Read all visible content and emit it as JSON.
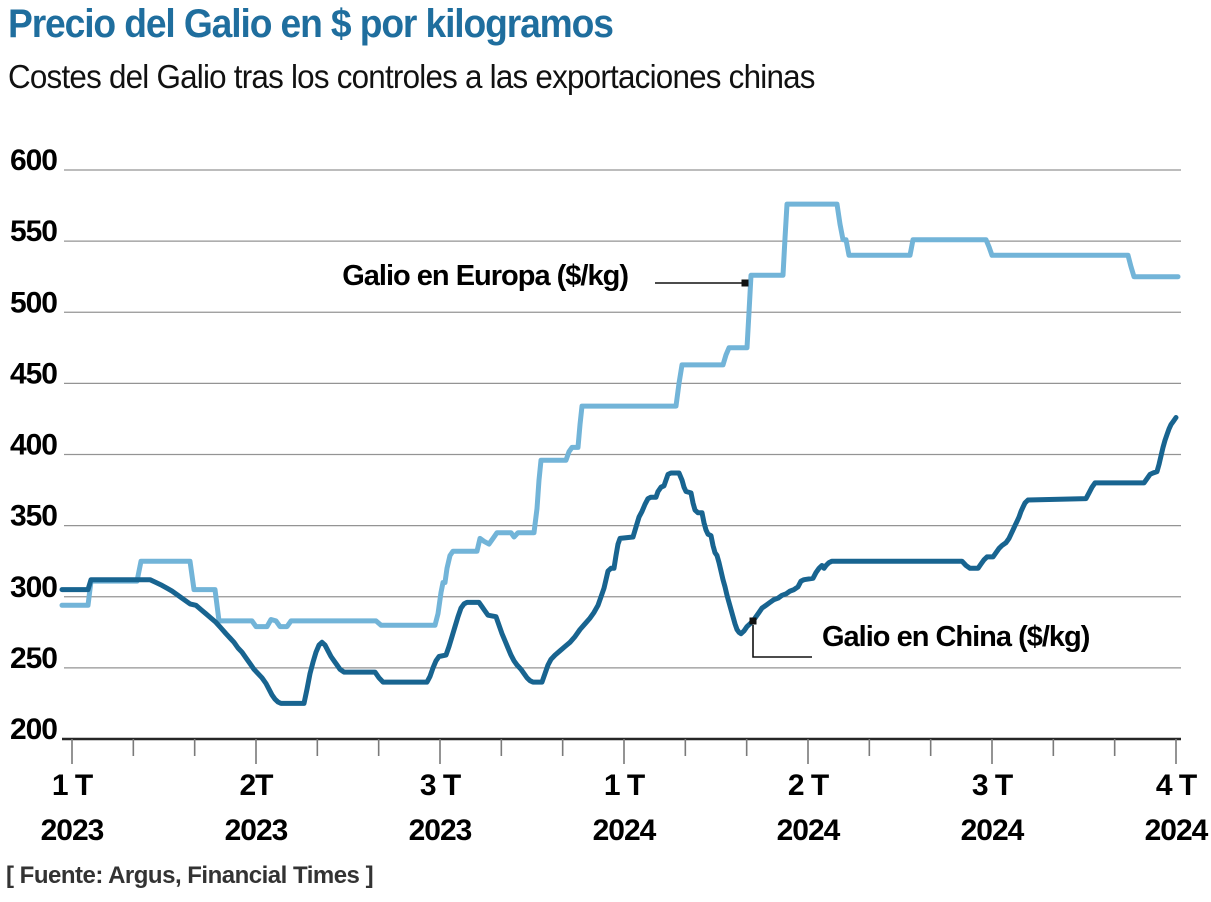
{
  "header": {
    "title": "Precio del Galio en $ por kilogramos",
    "subtitle": "Costes del Galio tras los controles a las exportaciones chinas"
  },
  "source": "[ Fuente: Argus, Financial Times ]",
  "colors": {
    "title": "#1F6E9E",
    "europa_line": "#72B4D8",
    "china_line": "#186490",
    "grid": "#949494",
    "axis": "#262626",
    "tick": "#7a7a7a",
    "callout": "#111111"
  },
  "chart_data": {
    "type": "line",
    "unit": "$/kg",
    "title": "Precio del Galio en $ por kilogramos",
    "subtitle": "Costes del Galio tras los controles a las exportaciones chinas",
    "ylim": [
      200,
      600
    ],
    "yticks": [
      600,
      550,
      500,
      450,
      400,
      350,
      300,
      250,
      200
    ],
    "grid": "horizontal-only",
    "x_tick_labels": [
      {
        "line1": "1 T",
        "line2": "2023"
      },
      {
        "line1": "2T",
        "line2": "2023"
      },
      {
        "line1": "3 T",
        "line2": "2023"
      },
      {
        "line1": "1 T",
        "line2": "2024"
      },
      {
        "line1": "2 T",
        "line2": "2024"
      },
      {
        "line1": "3 T",
        "line2": "2024"
      },
      {
        "line1": "4 T",
        "line2": "2024"
      }
    ],
    "annotations": [
      {
        "key": "europa",
        "label": "Galio en Europa ($/kg)"
      },
      {
        "key": "china",
        "label": "Galio en China ($/kg)"
      }
    ],
    "series": [
      {
        "name": "Galio en Europa ($/kg)",
        "key": "europa",
        "points": [
          [
            62,
            294
          ],
          [
            88,
            294
          ],
          [
            91,
            311
          ],
          [
            137,
            311
          ],
          [
            141,
            325
          ],
          [
            190,
            325
          ],
          [
            194,
            305
          ],
          [
            215,
            305
          ],
          [
            219,
            283
          ],
          [
            252,
            283
          ],
          [
            256,
            279
          ],
          [
            267,
            279
          ],
          [
            271,
            284
          ],
          [
            276,
            283
          ],
          [
            280,
            279
          ],
          [
            287,
            279
          ],
          [
            291,
            283
          ],
          [
            376,
            283
          ],
          [
            381,
            280
          ],
          [
            435,
            280
          ],
          [
            438,
            288
          ],
          [
            441,
            303
          ],
          [
            443,
            310
          ],
          [
            445,
            310
          ],
          [
            447,
            320
          ],
          [
            450,
            329
          ],
          [
            453,
            332
          ],
          [
            477,
            332
          ],
          [
            480,
            341
          ],
          [
            484,
            339
          ],
          [
            489,
            337
          ],
          [
            493,
            341
          ],
          [
            497,
            345
          ],
          [
            511,
            345
          ],
          [
            514,
            342
          ],
          [
            518,
            345
          ],
          [
            534,
            345
          ],
          [
            537,
            362
          ],
          [
            539,
            382
          ],
          [
            541,
            396
          ],
          [
            566,
            396
          ],
          [
            569,
            402
          ],
          [
            572,
            405
          ],
          [
            578,
            405
          ],
          [
            580,
            421
          ],
          [
            582,
            434
          ],
          [
            676,
            434
          ],
          [
            679,
            450
          ],
          [
            682,
            463
          ],
          [
            723,
            463
          ],
          [
            726,
            470
          ],
          [
            729,
            475
          ],
          [
            747,
            475
          ],
          [
            749,
            500
          ],
          [
            751,
            526
          ],
          [
            783,
            526
          ],
          [
            785,
            552
          ],
          [
            787,
            576
          ],
          [
            837,
            576
          ],
          [
            840,
            562
          ],
          [
            843,
            551
          ],
          [
            846,
            551
          ],
          [
            849,
            540
          ],
          [
            910,
            540
          ],
          [
            913,
            551
          ],
          [
            986,
            551
          ],
          [
            989,
            546
          ],
          [
            992,
            540
          ],
          [
            1128,
            540
          ],
          [
            1131,
            532
          ],
          [
            1134,
            525
          ],
          [
            1178,
            525
          ]
        ]
      },
      {
        "name": "Galio en China ($/kg)",
        "key": "china",
        "points": [
          [
            62,
            305
          ],
          [
            88,
            305
          ],
          [
            91,
            312
          ],
          [
            150,
            312
          ],
          [
            156,
            310
          ],
          [
            162,
            308
          ],
          [
            167,
            306
          ],
          [
            172,
            304
          ],
          [
            178,
            301
          ],
          [
            184,
            298
          ],
          [
            190,
            295
          ],
          [
            196,
            294
          ],
          [
            201,
            291
          ],
          [
            206,
            288
          ],
          [
            211,
            285
          ],
          [
            216,
            282
          ],
          [
            221,
            278
          ],
          [
            226,
            274
          ],
          [
            230,
            271
          ],
          [
            234,
            268
          ],
          [
            238,
            264
          ],
          [
            242,
            261
          ],
          [
            246,
            257
          ],
          [
            250,
            253
          ],
          [
            254,
            249
          ],
          [
            258,
            246
          ],
          [
            262,
            243
          ],
          [
            266,
            239
          ],
          [
            269,
            235
          ],
          [
            272,
            231
          ],
          [
            275,
            228
          ],
          [
            278,
            226
          ],
          [
            281,
            225
          ],
          [
            304,
            225
          ],
          [
            307,
            235
          ],
          [
            310,
            246
          ],
          [
            313,
            254
          ],
          [
            316,
            261
          ],
          [
            319,
            266
          ],
          [
            322,
            268
          ],
          [
            325,
            266
          ],
          [
            328,
            262
          ],
          [
            331,
            258
          ],
          [
            334,
            255
          ],
          [
            337,
            252
          ],
          [
            340,
            249
          ],
          [
            344,
            247
          ],
          [
            375,
            247
          ],
          [
            379,
            243
          ],
          [
            383,
            240
          ],
          [
            427,
            240
          ],
          [
            430,
            244
          ],
          [
            433,
            250
          ],
          [
            436,
            255
          ],
          [
            439,
            258
          ],
          [
            446,
            259
          ],
          [
            449,
            265
          ],
          [
            452,
            272
          ],
          [
            455,
            279
          ],
          [
            458,
            286
          ],
          [
            461,
            292
          ],
          [
            464,
            295
          ],
          [
            467,
            296
          ],
          [
            479,
            296
          ],
          [
            482,
            293
          ],
          [
            485,
            290
          ],
          [
            488,
            287
          ],
          [
            496,
            286
          ],
          [
            499,
            280
          ],
          [
            502,
            274
          ],
          [
            505,
            269
          ],
          [
            508,
            264
          ],
          [
            511,
            259
          ],
          [
            514,
            255
          ],
          [
            517,
            252
          ],
          [
            521,
            249
          ],
          [
            524,
            246
          ],
          [
            527,
            243
          ],
          [
            530,
            241
          ],
          [
            533,
            240
          ],
          [
            542,
            240
          ],
          [
            545,
            246
          ],
          [
            548,
            252
          ],
          [
            551,
            256
          ],
          [
            555,
            259
          ],
          [
            560,
            262
          ],
          [
            565,
            265
          ],
          [
            570,
            268
          ],
          [
            575,
            272
          ],
          [
            580,
            277
          ],
          [
            585,
            281
          ],
          [
            590,
            285
          ],
          [
            594,
            289
          ],
          [
            598,
            294
          ],
          [
            601,
            300
          ],
          [
            604,
            306
          ],
          [
            606,
            312
          ],
          [
            608,
            318
          ],
          [
            611,
            320
          ],
          [
            614,
            320
          ],
          [
            616,
            329
          ],
          [
            618,
            337
          ],
          [
            620,
            341
          ],
          [
            633,
            342
          ],
          [
            636,
            349
          ],
          [
            639,
            356
          ],
          [
            642,
            360
          ],
          [
            645,
            365
          ],
          [
            648,
            369
          ],
          [
            651,
            370
          ],
          [
            656,
            370
          ],
          [
            658,
            374
          ],
          [
            661,
            377
          ],
          [
            664,
            378
          ],
          [
            666,
            382
          ],
          [
            668,
            386
          ],
          [
            671,
            387
          ],
          [
            679,
            387
          ],
          [
            682,
            382
          ],
          [
            684,
            377
          ],
          [
            686,
            374
          ],
          [
            691,
            373
          ],
          [
            693,
            366
          ],
          [
            695,
            361
          ],
          [
            698,
            359
          ],
          [
            702,
            359
          ],
          [
            704,
            352
          ],
          [
            706,
            347
          ],
          [
            708,
            344
          ],
          [
            711,
            343
          ],
          [
            713,
            336
          ],
          [
            715,
            331
          ],
          [
            717,
            329
          ],
          [
            719,
            324
          ],
          [
            721,
            318
          ],
          [
            723,
            312
          ],
          [
            725,
            307
          ],
          [
            727,
            301
          ],
          [
            729,
            296
          ],
          [
            731,
            291
          ],
          [
            733,
            286
          ],
          [
            735,
            281
          ],
          [
            737,
            277
          ],
          [
            739,
            275
          ],
          [
            741,
            274
          ],
          [
            744,
            276
          ],
          [
            747,
            279
          ],
          [
            750,
            281
          ],
          [
            753,
            283
          ],
          [
            756,
            286
          ],
          [
            759,
            289
          ],
          [
            762,
            292
          ],
          [
            766,
            294
          ],
          [
            770,
            296
          ],
          [
            774,
            298
          ],
          [
            778,
            299
          ],
          [
            782,
            301
          ],
          [
            786,
            302
          ],
          [
            790,
            304
          ],
          [
            794,
            305
          ],
          [
            798,
            307
          ],
          [
            801,
            311
          ],
          [
            804,
            312
          ],
          [
            813,
            313
          ],
          [
            816,
            317
          ],
          [
            819,
            320
          ],
          [
            822,
            322
          ],
          [
            824,
            320
          ],
          [
            826,
            322
          ],
          [
            829,
            324
          ],
          [
            832,
            325
          ],
          [
            962,
            325
          ],
          [
            966,
            322
          ],
          [
            970,
            320
          ],
          [
            978,
            320
          ],
          [
            981,
            323
          ],
          [
            984,
            326
          ],
          [
            987,
            328
          ],
          [
            993,
            328
          ],
          [
            996,
            331
          ],
          [
            999,
            334
          ],
          [
            1002,
            336
          ],
          [
            1006,
            338
          ],
          [
            1009,
            341
          ],
          [
            1011,
            344
          ],
          [
            1013,
            347
          ],
          [
            1015,
            350
          ],
          [
            1017,
            353
          ],
          [
            1019,
            356
          ],
          [
            1021,
            360
          ],
          [
            1023,
            363
          ],
          [
            1025,
            366
          ],
          [
            1028,
            368
          ],
          [
            1086,
            369
          ],
          [
            1089,
            373
          ],
          [
            1092,
            377
          ],
          [
            1095,
            380
          ],
          [
            1144,
            380
          ],
          [
            1147,
            383
          ],
          [
            1150,
            386
          ],
          [
            1153,
            387
          ],
          [
            1157,
            388
          ],
          [
            1159,
            393
          ],
          [
            1161,
            399
          ],
          [
            1163,
            405
          ],
          [
            1165,
            410
          ],
          [
            1167,
            414
          ],
          [
            1169,
            418
          ],
          [
            1171,
            421
          ],
          [
            1173,
            423
          ],
          [
            1176,
            426
          ]
        ]
      }
    ]
  }
}
